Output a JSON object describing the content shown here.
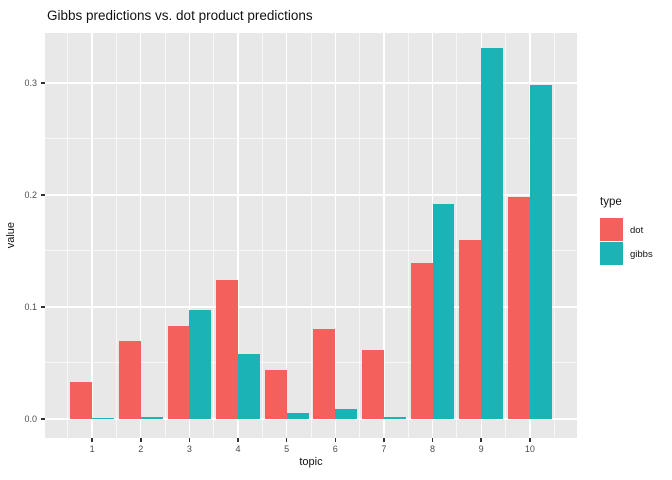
{
  "chart_data": {
    "type": "bar",
    "title": "Gibbs predictions vs. dot product predictions",
    "xlabel": "topic",
    "ylabel": "value",
    "categories": [
      "1",
      "2",
      "3",
      "4",
      "5",
      "6",
      "7",
      "8",
      "9",
      "10"
    ],
    "series": [
      {
        "name": "dot",
        "color": "#F4605C",
        "values": [
          0.033,
          0.07,
          0.083,
          0.124,
          0.044,
          0.08,
          0.062,
          0.139,
          0.16,
          0.198
        ]
      },
      {
        "name": "gibbs",
        "color": "#1AB3B6",
        "values": [
          0.001,
          0.002,
          0.097,
          0.058,
          0.005,
          0.009,
          0.002,
          0.192,
          0.331,
          0.298
        ]
      }
    ],
    "ylim": [
      -0.017,
      0.345
    ],
    "yticks": [
      0,
      0.1,
      0.2,
      0.3
    ],
    "ytick_labels": [
      "0.0",
      "0.1",
      "0.2",
      "0.3"
    ],
    "minor_yticks": [
      0.05,
      0.15,
      0.25
    ],
    "grid": true,
    "legend_position": "right",
    "panel_bg": "#E8E8E8",
    "grid_color": "#FFFFFF"
  },
  "legend": {
    "title": "type",
    "items": [
      {
        "label": "dot",
        "color": "#F4605C"
      },
      {
        "label": "gibbs",
        "color": "#1AB3B6"
      }
    ]
  }
}
